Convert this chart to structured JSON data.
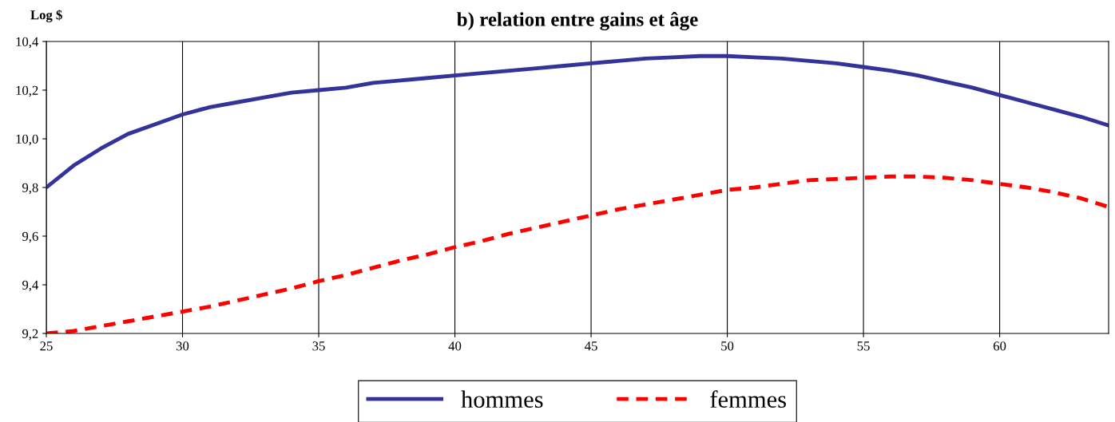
{
  "chart_data": {
    "type": "line",
    "title": "b) relation entre gains et âge",
    "ylabel": "Log $",
    "x": [
      25,
      26,
      27,
      28,
      29,
      30,
      31,
      32,
      33,
      34,
      35,
      36,
      37,
      38,
      39,
      40,
      41,
      42,
      43,
      44,
      45,
      46,
      47,
      48,
      49,
      50,
      51,
      52,
      53,
      54,
      55,
      56,
      57,
      58,
      59,
      60,
      61,
      62,
      63,
      64
    ],
    "series": [
      {
        "name": "hommes",
        "color": "#333399",
        "line_style": "solid",
        "values": [
          9.8,
          9.89,
          9.96,
          10.02,
          10.06,
          10.1,
          10.13,
          10.15,
          10.17,
          10.19,
          10.2,
          10.21,
          10.23,
          10.24,
          10.25,
          10.26,
          10.27,
          10.28,
          10.29,
          10.3,
          10.31,
          10.32,
          10.33,
          10.335,
          10.34,
          10.34,
          10.335,
          10.33,
          10.32,
          10.31,
          10.295,
          10.28,
          10.26,
          10.235,
          10.21,
          10.18,
          10.15,
          10.12,
          10.09,
          10.055
        ]
      },
      {
        "name": "femmes",
        "color": "#ff0000",
        "line_style": "dashed",
        "values": [
          9.2,
          9.21,
          9.23,
          9.25,
          9.27,
          9.29,
          9.31,
          9.335,
          9.36,
          9.385,
          9.415,
          9.44,
          9.47,
          9.5,
          9.525,
          9.555,
          9.58,
          9.61,
          9.635,
          9.66,
          9.685,
          9.71,
          9.73,
          9.75,
          9.77,
          9.79,
          9.8,
          9.815,
          9.83,
          9.835,
          9.84,
          9.845,
          9.845,
          9.84,
          9.83,
          9.815,
          9.8,
          9.78,
          9.755,
          9.72
        ]
      }
    ],
    "xlim": [
      25,
      64
    ],
    "xticks": [
      25,
      30,
      35,
      40,
      45,
      50,
      55,
      60
    ],
    "ylim": [
      9.2,
      10.4
    ],
    "yticks": [
      {
        "value": 9.2,
        "label": "9,2"
      },
      {
        "value": 9.4,
        "label": "9,4"
      },
      {
        "value": 9.6,
        "label": "9,6"
      },
      {
        "value": 9.8,
        "label": "9,8"
      },
      {
        "value": 10.0,
        "label": "10,0"
      },
      {
        "value": 10.2,
        "label": "10,2"
      },
      {
        "value": 10.4,
        "label": "10,4"
      }
    ],
    "grid": "x",
    "legend": "bottom",
    "marker": "none"
  }
}
